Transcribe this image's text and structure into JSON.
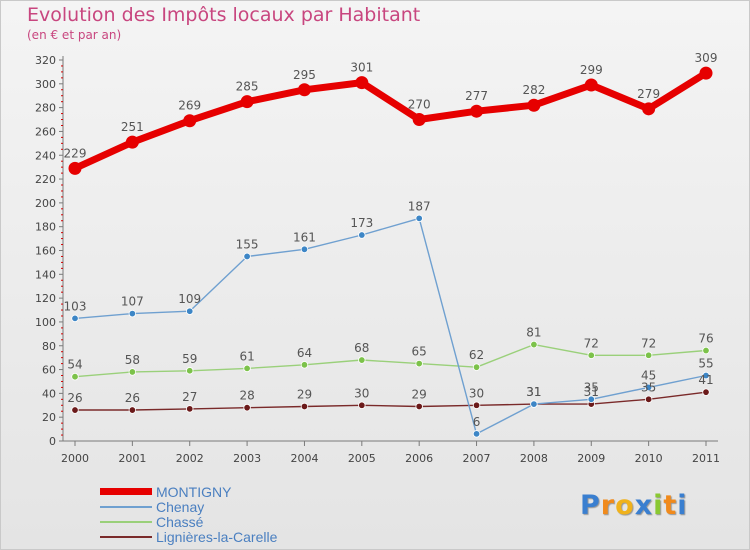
{
  "header": {
    "title": "Evolution des Impôts locaux par Habitant",
    "subtitle": "(en € et par an)"
  },
  "logo": {
    "text": "Proxiti",
    "letters": [
      "P",
      "r",
      "o",
      "x",
      "i",
      "t",
      "i"
    ]
  },
  "colors": {
    "title": "#c8467f",
    "axis": "#7a7a7a",
    "grid_tick": "#d00000",
    "value_label": "#555555",
    "legend_text": "#4a7fc0",
    "logo_letters": [
      "#3a7fd0",
      "#f08a1c",
      "#f0b21c",
      "#3a7fd0",
      "#8ac832",
      "#f08a1c",
      "#3a7fd0"
    ]
  },
  "chart_data": {
    "type": "line",
    "title": "Evolution des Impôts locaux par Habitant",
    "subtitle": "(en € et par an)",
    "xlabel": "",
    "ylabel": "",
    "categories": [
      "2000",
      "2001",
      "2002",
      "2003",
      "2004",
      "2005",
      "2006",
      "2007",
      "2008",
      "2009",
      "2010",
      "2011"
    ],
    "ylim": [
      0,
      320
    ],
    "yticks": [
      0,
      20,
      40,
      60,
      80,
      100,
      120,
      140,
      160,
      180,
      200,
      220,
      240,
      260,
      280,
      300,
      320
    ],
    "legend_position": "bottom-left",
    "series": [
      {
        "name": "MONTIGNY",
        "color": "#e60000",
        "values": [
          229,
          251,
          269,
          285,
          295,
          301,
          270,
          277,
          282,
          299,
          279,
          309
        ],
        "labels": [
          "229",
          "251",
          "269",
          "285",
          "295",
          "301",
          "270",
          "277",
          "282",
          "299",
          "279",
          "309"
        ],
        "emphasis": "thick"
      },
      {
        "name": "Chenay",
        "color": "#6fa0d0",
        "marker_color": "#3d86c6",
        "values": [
          103,
          107,
          109,
          155,
          161,
          173,
          187,
          6,
          31,
          35,
          45,
          55
        ],
        "labels": [
          "103",
          "107",
          "109",
          "155",
          "161",
          "173",
          "187",
          "6",
          "31",
          "35",
          "45",
          "55"
        ],
        "emphasis": "thin"
      },
      {
        "name": "Chassé",
        "color": "#9ad07a",
        "marker_color": "#7cc24a",
        "values": [
          54,
          58,
          59,
          61,
          64,
          68,
          65,
          62,
          81,
          72,
          72,
          76
        ],
        "labels": [
          "54",
          "58",
          "59",
          "61",
          "64",
          "68",
          "65",
          "62",
          "81",
          "72",
          "72",
          "76"
        ],
        "emphasis": "thin"
      },
      {
        "name": "Lignières-la-Carelle",
        "color": "#7a2a2a",
        "marker_color": "#6b1a1a",
        "values": [
          26,
          26,
          27,
          28,
          29,
          30,
          29,
          30,
          31,
          31,
          35,
          41
        ],
        "labels": [
          "26",
          "26",
          "27",
          "28",
          "29",
          "30",
          "29",
          "30",
          "31",
          "31",
          "35",
          "41"
        ],
        "emphasis": "thin"
      }
    ]
  }
}
